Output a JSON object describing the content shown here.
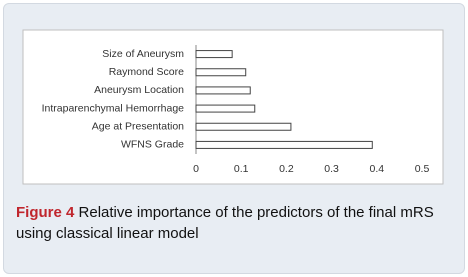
{
  "chart_data": {
    "type": "bar",
    "orientation": "horizontal",
    "categories": [
      "Size of Aneurysm",
      "Raymond Score",
      "Aneurysm Location",
      "Intraparenchymal Hemorrhage",
      "Age at Presentation",
      "WFNS Grade"
    ],
    "values": [
      0.08,
      0.11,
      0.12,
      0.13,
      0.21,
      0.39
    ],
    "color": "#ffffff",
    "xlim": [
      0,
      0.5
    ],
    "xticks": [
      0,
      0.1,
      0.2,
      0.3,
      0.4,
      0.5
    ],
    "grid": false
  },
  "caption": {
    "label": "Figure 4",
    "text": "Relative importance of the predictors of the final mRS using classical linear model"
  }
}
